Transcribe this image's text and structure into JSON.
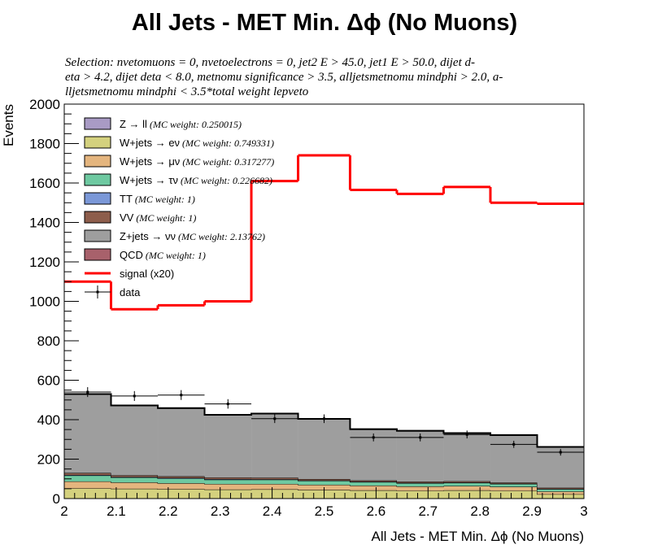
{
  "title": "All Jets - MET Min. Δϕ (No Muons)",
  "selection_lines": [
    "Selection: nvetomuons  =  0, nvetoelectrons  =  0, jet2 E > 45.0, jet1 E > 50.0, dijet d-",
    "eta > 4.2, dijet deta < 8.0, metnomu significance > 3.5, alljetsmetnomu mindphi > 2.0, a-",
    "lljetsmetnomu mindphi < 3.5*total weight lepveto"
  ],
  "chart_data": {
    "type": "bar",
    "stacked": true,
    "xlabel": "All Jets - MET Min. Δϕ (No Muons)",
    "ylabel": "Events",
    "xlim": [
      2,
      3
    ],
    "ylim": [
      0,
      2000
    ],
    "x_ticks": [
      "2",
      "2.1",
      "2.2",
      "2.3",
      "2.4",
      "2.5",
      "2.6",
      "2.7",
      "2.8",
      "2.9",
      "3"
    ],
    "y_ticks": [
      "0",
      "200",
      "400",
      "600",
      "800",
      "1000",
      "1200",
      "1400",
      "1600",
      "1800",
      "2000"
    ],
    "bin_edges": [
      2.0,
      2.09,
      2.18,
      2.27,
      2.36,
      2.45,
      2.55,
      2.64,
      2.73,
      2.82,
      2.91,
      3.0
    ],
    "grid": false,
    "legend_position": "top-left",
    "series": [
      {
        "name": "Z → ll",
        "note": "(MC weight: 0.250015)",
        "color": "#a99bc5",
        "legend_type": "box",
        "values": [
          2,
          2,
          2,
          2,
          2,
          2,
          2,
          2,
          2,
          2,
          2
        ]
      },
      {
        "name": "W+jets → eν",
        "note": "(MC weight: 0.749331)",
        "color": "#d4d17e",
        "legend_type": "box",
        "values": [
          50,
          48,
          46,
          44,
          45,
          42,
          40,
          38,
          40,
          38,
          20
        ]
      },
      {
        "name": "W+jets → μν",
        "note": "(MC weight: 0.317277)",
        "color": "#e4b57e",
        "legend_type": "box",
        "values": [
          35,
          32,
          30,
          28,
          27,
          26,
          24,
          22,
          22,
          20,
          14
        ]
      },
      {
        "name": "W+jets → τν",
        "note": "(MC weight: 0.226682)",
        "color": "#6ec9a1",
        "legend_type": "box",
        "values": [
          30,
          25,
          24,
          22,
          22,
          20,
          18,
          16,
          16,
          14,
          12
        ]
      },
      {
        "name": "TT",
        "note": "(MC weight: 1)",
        "color": "#7b98d8",
        "legend_type": "box",
        "values": [
          3,
          3,
          3,
          3,
          2,
          2,
          2,
          2,
          2,
          2,
          2
        ]
      },
      {
        "name": "VV",
        "note": "(MC weight: 1)",
        "color": "#8d5d4b",
        "legend_type": "box",
        "values": [
          10,
          8,
          8,
          8,
          8,
          7,
          6,
          6,
          6,
          5,
          5
        ]
      },
      {
        "name": "Z+jets → νν",
        "note": "(MC weight: 2.13762)",
        "color": "#9e9e9e",
        "legend_type": "box",
        "values": [
          398,
          352,
          344,
          316,
          323,
          303,
          258,
          256,
          242,
          239,
          205
        ]
      },
      {
        "name": "QCD",
        "note": "(MC weight: 1)",
        "color": "#a8616b",
        "legend_type": "box",
        "values": [
          2,
          2,
          2,
          2,
          2,
          2,
          2,
          2,
          2,
          2,
          2
        ]
      }
    ],
    "signal": {
      "name": "signal (x20)",
      "color": "#ff0000",
      "legend_type": "line",
      "values": [
        1100,
        960,
        980,
        1000,
        1610,
        1740,
        1565,
        1545,
        1580,
        1500,
        1495
      ]
    },
    "data": {
      "name": "data",
      "legend_type": "marker",
      "x": [
        2.045,
        2.135,
        2.225,
        2.315,
        2.405,
        2.5,
        2.595,
        2.685,
        2.775,
        2.865,
        2.955
      ],
      "y": [
        540,
        520,
        525,
        480,
        405,
        405,
        310,
        310,
        325,
        275,
        235
      ],
      "yerr": [
        25,
        25,
        25,
        24,
        22,
        22,
        20,
        20,
        20,
        18,
        17
      ]
    }
  }
}
